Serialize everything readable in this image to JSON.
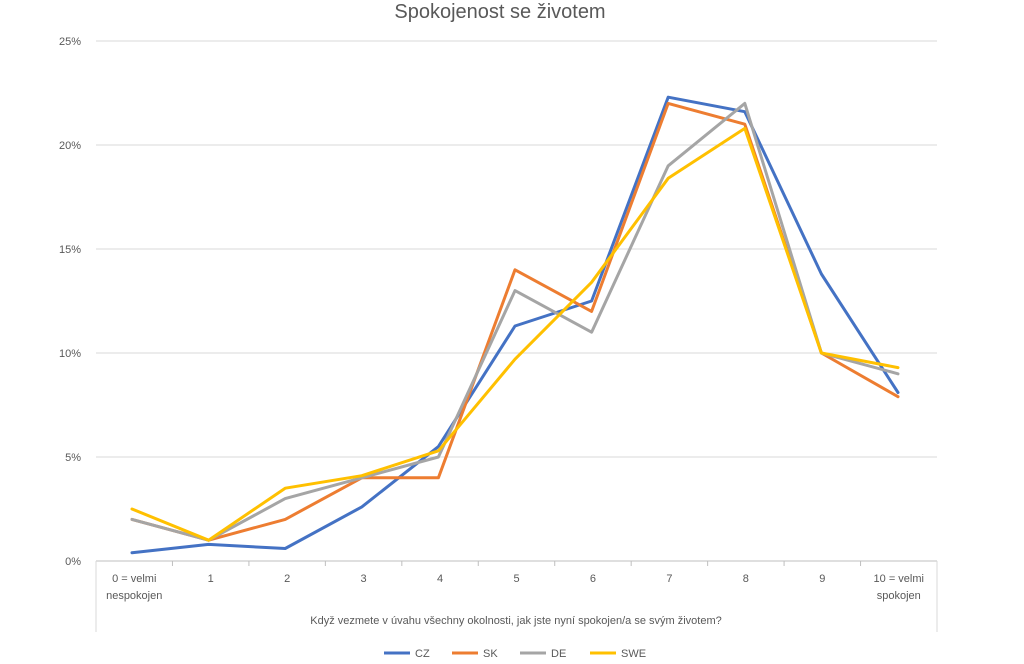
{
  "chart_data": {
    "type": "line",
    "title": "Spokojenost se životem",
    "xlabel": "Když vezmete v úvahu všechny okolnosti, jak jste nyní spokojen/a se svým životem?",
    "ylabel": "",
    "categories": [
      "0 = velmi nespokojen",
      "1",
      "2",
      "3",
      "4",
      "5",
      "6",
      "7",
      "8",
      "9",
      "10 = velmi spokojen"
    ],
    "y_ticks": [
      "0%",
      "5%",
      "10%",
      "15%",
      "20%",
      "25%"
    ],
    "ylim": [
      0,
      25
    ],
    "grid": true,
    "legend_position": "bottom",
    "series": [
      {
        "name": "CZ",
        "color": "#4472C4",
        "values": [
          0.4,
          0.8,
          0.6,
          2.6,
          5.5,
          11.3,
          12.5,
          22.3,
          21.6,
          13.8,
          8.1
        ]
      },
      {
        "name": "SK",
        "color": "#ED7D31",
        "values": [
          2.0,
          1.0,
          2.0,
          4.0,
          4.0,
          14.0,
          12.0,
          22.0,
          21.0,
          10.0,
          7.9
        ]
      },
      {
        "name": "DE",
        "color": "#A5A5A5",
        "values": [
          2.0,
          1.0,
          3.0,
          4.0,
          5.0,
          13.0,
          11.0,
          19.0,
          22.0,
          10.0,
          9.0
        ]
      },
      {
        "name": "SWE",
        "color": "#FFC000",
        "values": [
          2.5,
          1.0,
          3.5,
          4.1,
          5.3,
          9.7,
          13.4,
          18.4,
          20.8,
          10.0,
          9.3
        ]
      }
    ]
  }
}
